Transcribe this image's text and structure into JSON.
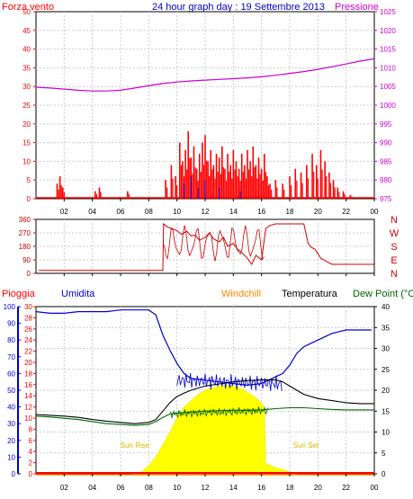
{
  "title": "24 hour graph day : 19 Settembre 2013",
  "colors": {
    "wind": "#ff0000",
    "pressure": "#cc00cc",
    "direction": "#cc0000",
    "rain": "#ff0000",
    "humidity": "#0000cc",
    "windchill": "#ff8800",
    "temperature": "#000000",
    "dewpoint": "#006600",
    "sun": "#ffff00",
    "grid": "#cccccc",
    "axis": "#000000"
  },
  "x_tick_labels": [
    "02",
    "04",
    "06",
    "08",
    "10",
    "12",
    "14",
    "16",
    "18",
    "20",
    "22",
    "00"
  ],
  "chart_data": [
    {
      "type": "line",
      "panel": "wind-pressure",
      "xlabel": "",
      "x_domain": [
        0,
        24
      ],
      "left_axis": {
        "label": "Forza vento",
        "ylim": [
          0,
          50
        ],
        "ticks": [
          "0",
          "5",
          "10",
          "15",
          "20",
          "25",
          "30",
          "35",
          "40",
          "45",
          "50"
        ]
      },
      "right_axis": {
        "label": "Pressione",
        "ylim": [
          975,
          1025
        ],
        "ticks": [
          "975",
          "980",
          "985",
          "990",
          "995",
          "1000",
          "1005",
          "1010",
          "1015",
          "1020",
          "1025"
        ]
      },
      "series": [
        {
          "name": "Forza vento",
          "axis": "left",
          "bursts": [
            {
              "x": 1.5,
              "y": 4
            },
            {
              "x": 1.7,
              "y": 6
            },
            {
              "x": 1.9,
              "y": 3
            },
            {
              "x": 4.2,
              "y": 2
            },
            {
              "x": 4.5,
              "y": 3
            },
            {
              "x": 6.5,
              "y": 2
            },
            {
              "x": 9.2,
              "y": 5
            },
            {
              "x": 9.6,
              "y": 9
            },
            {
              "x": 9.9,
              "y": 6
            },
            {
              "x": 10.2,
              "y": 15
            },
            {
              "x": 10.4,
              "y": 10
            },
            {
              "x": 10.6,
              "y": 13
            },
            {
              "x": 10.8,
              "y": 18
            },
            {
              "x": 11.0,
              "y": 11
            },
            {
              "x": 11.2,
              "y": 14
            },
            {
              "x": 11.4,
              "y": 8
            },
            {
              "x": 11.6,
              "y": 12
            },
            {
              "x": 11.8,
              "y": 15
            },
            {
              "x": 12.0,
              "y": 17
            },
            {
              "x": 12.2,
              "y": 10
            },
            {
              "x": 12.4,
              "y": 13
            },
            {
              "x": 12.6,
              "y": 9
            },
            {
              "x": 12.8,
              "y": 12
            },
            {
              "x": 13.0,
              "y": 11
            },
            {
              "x": 13.2,
              "y": 14
            },
            {
              "x": 13.4,
              "y": 8
            },
            {
              "x": 13.6,
              "y": 12
            },
            {
              "x": 13.8,
              "y": 9
            },
            {
              "x": 14.0,
              "y": 13
            },
            {
              "x": 14.2,
              "y": 10
            },
            {
              "x": 14.4,
              "y": 8
            },
            {
              "x": 14.6,
              "y": 12
            },
            {
              "x": 14.8,
              "y": 9
            },
            {
              "x": 15.0,
              "y": 13
            },
            {
              "x": 15.2,
              "y": 10
            },
            {
              "x": 15.4,
              "y": 14
            },
            {
              "x": 15.6,
              "y": 9
            },
            {
              "x": 15.8,
              "y": 11
            },
            {
              "x": 16.0,
              "y": 8
            },
            {
              "x": 16.2,
              "y": 12
            },
            {
              "x": 16.4,
              "y": 6
            },
            {
              "x": 16.6,
              "y": 4
            },
            {
              "x": 17.0,
              "y": 5
            },
            {
              "x": 17.5,
              "y": 4
            },
            {
              "x": 18.0,
              "y": 6
            },
            {
              "x": 18.4,
              "y": 8
            },
            {
              "x": 18.8,
              "y": 7
            },
            {
              "x": 19.2,
              "y": 9
            },
            {
              "x": 19.6,
              "y": 12
            },
            {
              "x": 19.9,
              "y": 9
            },
            {
              "x": 20.2,
              "y": 13
            },
            {
              "x": 20.5,
              "y": 10
            },
            {
              "x": 20.8,
              "y": 7
            },
            {
              "x": 21.1,
              "y": 5
            },
            {
              "x": 21.4,
              "y": 3
            },
            {
              "x": 21.8,
              "y": 2
            },
            {
              "x": 22.3,
              "y": 1
            }
          ]
        },
        {
          "name": "Pressione",
          "axis": "right",
          "x": [
            0,
            1,
            2,
            3,
            4,
            5,
            6,
            7,
            8,
            9,
            10,
            11,
            12,
            13,
            14,
            15,
            16,
            17,
            18,
            19,
            20,
            21,
            22,
            23,
            24
          ],
          "y": [
            1004.8,
            1004.6,
            1004.3,
            1004.0,
            1003.8,
            1003.8,
            1004.0,
            1004.6,
            1005.2,
            1005.8,
            1006.2,
            1006.5,
            1006.7,
            1006.9,
            1007.1,
            1007.3,
            1007.6,
            1008.0,
            1008.5,
            1009.0,
            1009.6,
            1010.3,
            1011.0,
            1011.8,
            1012.4
          ]
        }
      ]
    },
    {
      "type": "line",
      "panel": "wind-direction",
      "x_domain": [
        0,
        24
      ],
      "left_axis": {
        "label": "",
        "ylim": [
          0,
          360
        ],
        "ticks": [
          "0",
          "90",
          "180",
          "270",
          "360"
        ]
      },
      "right_axis": {
        "label": "",
        "ticks": [
          "N",
          "E",
          "S",
          "W",
          "N"
        ]
      },
      "series": [
        {
          "name": "Direzione",
          "axis": "left",
          "x": [
            0.2,
            9.0,
            9.05,
            9.3,
            9.6,
            10.0,
            10.3,
            10.7,
            11.0,
            11.3,
            11.6,
            12.0,
            12.3,
            12.6,
            13.0,
            13.3,
            13.6,
            14.0,
            14.3,
            14.6,
            15.0,
            15.3,
            15.6,
            16.0,
            16.3,
            16.6,
            17.0,
            17.5,
            18.0,
            18.5,
            19.0,
            19.3,
            19.5,
            19.8,
            20.2,
            20.6,
            21.0,
            22.0,
            23.0,
            24.0
          ],
          "y": [
            20,
            20,
            330,
            310,
            300,
            285,
            260,
            280,
            250,
            255,
            220,
            240,
            270,
            230,
            210,
            240,
            180,
            200,
            160,
            140,
            100,
            60,
            120,
            90,
            300,
            320,
            330,
            330,
            330,
            330,
            330,
            200,
            175,
            160,
            100,
            80,
            60,
            60,
            60,
            60
          ]
        }
      ]
    },
    {
      "type": "line",
      "panel": "temperature",
      "x_domain": [
        0,
        24
      ],
      "left_axis_1": {
        "label": "Pioggia",
        "ylim": [
          0,
          30
        ],
        "ticks": [
          "0",
          "2",
          "4",
          "6",
          "8",
          "10",
          "12",
          "14",
          "16",
          "18",
          "20",
          "22",
          "24",
          "26",
          "28",
          "30"
        ]
      },
      "left_axis_2": {
        "label": "Umidita",
        "ylim": [
          0,
          100
        ],
        "ticks": [
          "0",
          "10",
          "20",
          "30",
          "40",
          "50",
          "60",
          "70",
          "80",
          "90",
          "100"
        ]
      },
      "right_axis": {
        "label": "Dew Point (°C",
        "ylim": [
          0,
          40
        ],
        "ticks": [
          "0",
          "5",
          "10",
          "15",
          "20",
          "25",
          "30",
          "35",
          "40"
        ]
      },
      "legend": [
        "Pioggia",
        "Umidita",
        "Windchill",
        "Temperatura",
        "Dew Point (°C"
      ],
      "annotations": [
        "Sun Rise",
        "Sun Set"
      ],
      "series": [
        {
          "name": "Umidita",
          "axis": "left_2",
          "x": [
            0,
            1,
            2,
            3,
            4,
            5,
            6,
            7,
            8,
            8.5,
            9,
            9.5,
            10,
            10.5,
            11,
            12,
            13,
            14,
            15,
            16,
            17,
            17.5,
            18,
            18.5,
            19,
            20,
            21,
            22,
            23,
            23.8
          ],
          "y": [
            97,
            96,
            96,
            97,
            97,
            97,
            98,
            98,
            98,
            95,
            83,
            74,
            66,
            60,
            57,
            56,
            55,
            54,
            53,
            54,
            58,
            60,
            65,
            72,
            76,
            80,
            84,
            86,
            86,
            86
          ]
        },
        {
          "name": "Temperatura",
          "axis": "right",
          "x": [
            0,
            1,
            2,
            3,
            4,
            5,
            6,
            7,
            8,
            8.5,
            9,
            9.5,
            10,
            10.5,
            11,
            12,
            13,
            14,
            15,
            16,
            17,
            17.5,
            18,
            18.5,
            19,
            20,
            21,
            22,
            23,
            24
          ],
          "y": [
            14.2,
            14.0,
            13.8,
            13.5,
            13.0,
            12.6,
            12.3,
            12.0,
            12.3,
            13.0,
            15.0,
            17.0,
            18.5,
            19.3,
            20.0,
            21.0,
            21.5,
            22.0,
            22.3,
            22.5,
            22.5,
            22.0,
            21.0,
            20.0,
            19.0,
            18.0,
            17.5,
            17.0,
            16.8,
            16.8
          ]
        },
        {
          "name": "Dew Point (°C",
          "axis": "right",
          "x": [
            0,
            1,
            2,
            3,
            4,
            5,
            6,
            7,
            8,
            8.5,
            9,
            9.5,
            10,
            11,
            12,
            13,
            14,
            15,
            16,
            17,
            18,
            19,
            20,
            21,
            22,
            23,
            24
          ],
          "y": [
            13.8,
            13.6,
            13.3,
            13.0,
            12.5,
            12.0,
            11.8,
            11.6,
            11.8,
            12.5,
            13.5,
            14.3,
            14.5,
            14.8,
            15.0,
            15.1,
            15.2,
            15.2,
            15.3,
            15.6,
            15.8,
            15.8,
            15.6,
            15.4,
            15.3,
            15.3,
            15.3
          ]
        },
        {
          "name": "Sole",
          "axis": "right",
          "x": [
            6.8,
            7.5,
            8.0,
            8.5,
            9.0,
            9.5,
            10.0,
            10.5,
            11.0,
            11.5,
            12.0,
            12.5,
            13.0,
            13.5,
            14.0,
            14.5,
            15.0,
            15.5,
            16.0,
            16.2,
            16.3,
            17.0,
            18.0,
            18.5
          ],
          "y": [
            0,
            0.5,
            2,
            4,
            7,
            10,
            13.5,
            16,
            17.5,
            19,
            20,
            20.5,
            21,
            21.2,
            21.0,
            20.5,
            19.5,
            18.5,
            17.0,
            16.0,
            2.5,
            1.5,
            0.5,
            0
          ]
        }
      ]
    }
  ]
}
